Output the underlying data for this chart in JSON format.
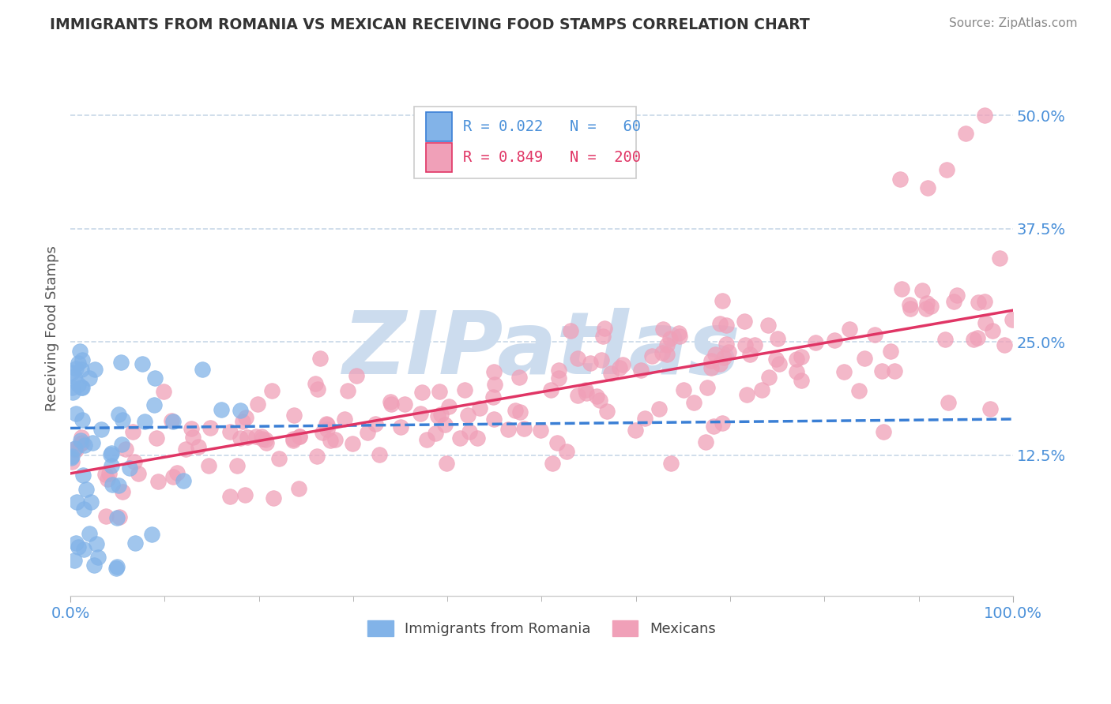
{
  "title": "IMMIGRANTS FROM ROMANIA VS MEXICAN RECEIVING FOOD STAMPS CORRELATION CHART",
  "source": "Source: ZipAtlas.com",
  "ylabel": "Receiving Food Stamps",
  "xlim": [
    0,
    1.0
  ],
  "ylim": [
    -0.03,
    0.56
  ],
  "yticks": [
    0.125,
    0.25,
    0.375,
    0.5
  ],
  "ytick_labels": [
    "12.5%",
    "25.0%",
    "37.5%",
    "50.0%"
  ],
  "romania_R": 0.022,
  "romania_N": 60,
  "mexican_R": 0.849,
  "mexican_N": 200,
  "romania_color": "#82b3e8",
  "mexican_color": "#f0a0b8",
  "romania_line_color": "#3a7fd5",
  "mexican_line_color": "#e03565",
  "watermark": "ZIPatlas",
  "watermark_color": "#ccdcee",
  "legend_label_romania": "Immigrants from Romania",
  "legend_label_mexican": "Mexicans",
  "title_color": "#333333",
  "axis_color": "#4a90d9",
  "grid_color": "#c8d8e8",
  "background_color": "#ffffff",
  "romania_trend_start": 0.155,
  "romania_trend_end": 0.165,
  "mexican_trend_start": 0.105,
  "mexican_trend_end": 0.285
}
